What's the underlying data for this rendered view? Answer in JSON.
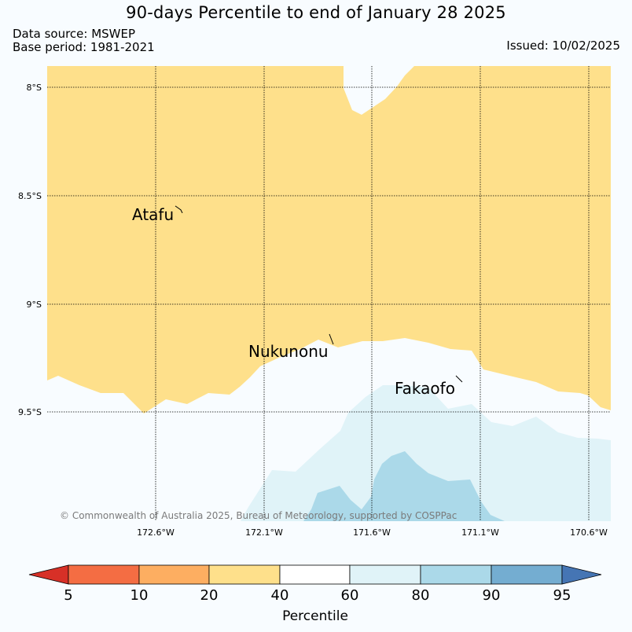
{
  "header": {
    "title": "90-days Percentile to end of January 28 2025",
    "data_source": "Data source: MSWEP",
    "base_period": "Base period: 1981-2021",
    "issued": "Issued: 10/02/2025"
  },
  "map": {
    "lat_labels": [
      "8°S",
      "8.5°S",
      "9°S",
      "9.5°S"
    ],
    "lon_labels": [
      "172.6°W",
      "172.1°W",
      "171.6°W",
      "171.1°W",
      "170.6°W"
    ],
    "places": [
      "Atafu",
      "Nukunonu",
      "Fakaofo"
    ],
    "credit": "© Commonwealth of Australia 2025, Bureau of Meteorology, supported by COSPPac"
  },
  "colorbar": {
    "title": "Percentile",
    "ticks": [
      "5",
      "10",
      "20",
      "40",
      "60",
      "80",
      "90",
      "95"
    ],
    "colors": [
      "#d73027",
      "#f46d43",
      "#fdae61",
      "#fee08b",
      "#ffffff",
      "#e0f3f8",
      "#abd9e9",
      "#74add1",
      "#4575b4"
    ]
  },
  "fill_colors": {
    "band_20_40": "#fee08b",
    "band_40_60": "#f8fcff",
    "band_60_80": "#e0f3f8",
    "band_80_90": "#abd9e9"
  }
}
